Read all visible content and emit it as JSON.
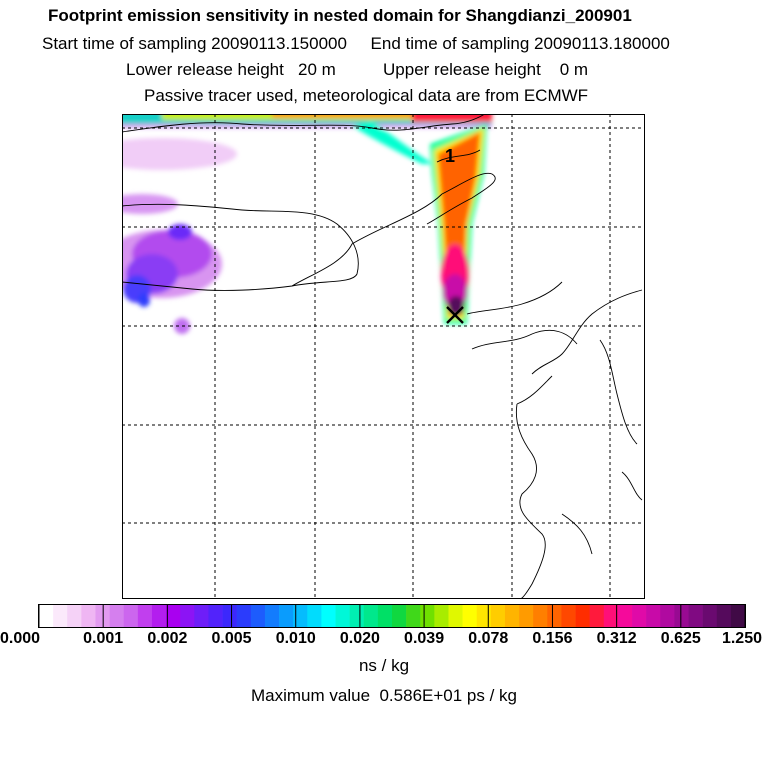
{
  "header": {
    "title": "Footprint emission sensitivity in nested domain for Shangdianzi_200901",
    "sampling_line": "Start time of sampling 20090113.150000     End time of sampling 20090113.180000",
    "release_line": "Lower release height   20 m          Upper release height    0 m",
    "tracer_line": "Passive tracer used, meteorological data are from ECMWF"
  },
  "map": {
    "marker_label": "1"
  },
  "colorbar": {
    "tick_labels": [
      "0.000",
      "0.001",
      "0.002",
      "0.005",
      "0.010",
      "0.020",
      "0.039",
      "0.078",
      "0.156",
      "0.312",
      "0.625",
      "1.250"
    ],
    "colors": [
      "#ffffff",
      "#fbe9fb",
      "#f5d2f7",
      "#efb6f3",
      "#e29af0",
      "#d57fee",
      "#cc66ee",
      "#c13fee",
      "#b31eee",
      "#a900f0",
      "#8c14f5",
      "#6e1ef8",
      "#5223fb",
      "#3c28fc",
      "#2b3cfc",
      "#1d5cfd",
      "#137cfd",
      "#0a9cfd",
      "#05bcfd",
      "#01dcfd",
      "#00fffe",
      "#00f7d8",
      "#00efb2",
      "#00e88c",
      "#00e066",
      "#10d840",
      "#40d81a",
      "#70e000",
      "#a8ec00",
      "#e0f800",
      "#ffff00",
      "#ffe600",
      "#ffcd00",
      "#ffb400",
      "#ff9b00",
      "#ff7f00",
      "#ff6400",
      "#ff4800",
      "#ff2d00",
      "#ff1a3c",
      "#ff0f78",
      "#f50a9b",
      "#e00aa8",
      "#c80aa8",
      "#b00aa0",
      "#980a92",
      "#800a82",
      "#6a0a70",
      "#550a5c",
      "#400a46"
    ],
    "unit_label": "ns / kg"
  },
  "footer": {
    "max_value_line": "Maximum value  0.586E+01 ps / kg"
  }
}
